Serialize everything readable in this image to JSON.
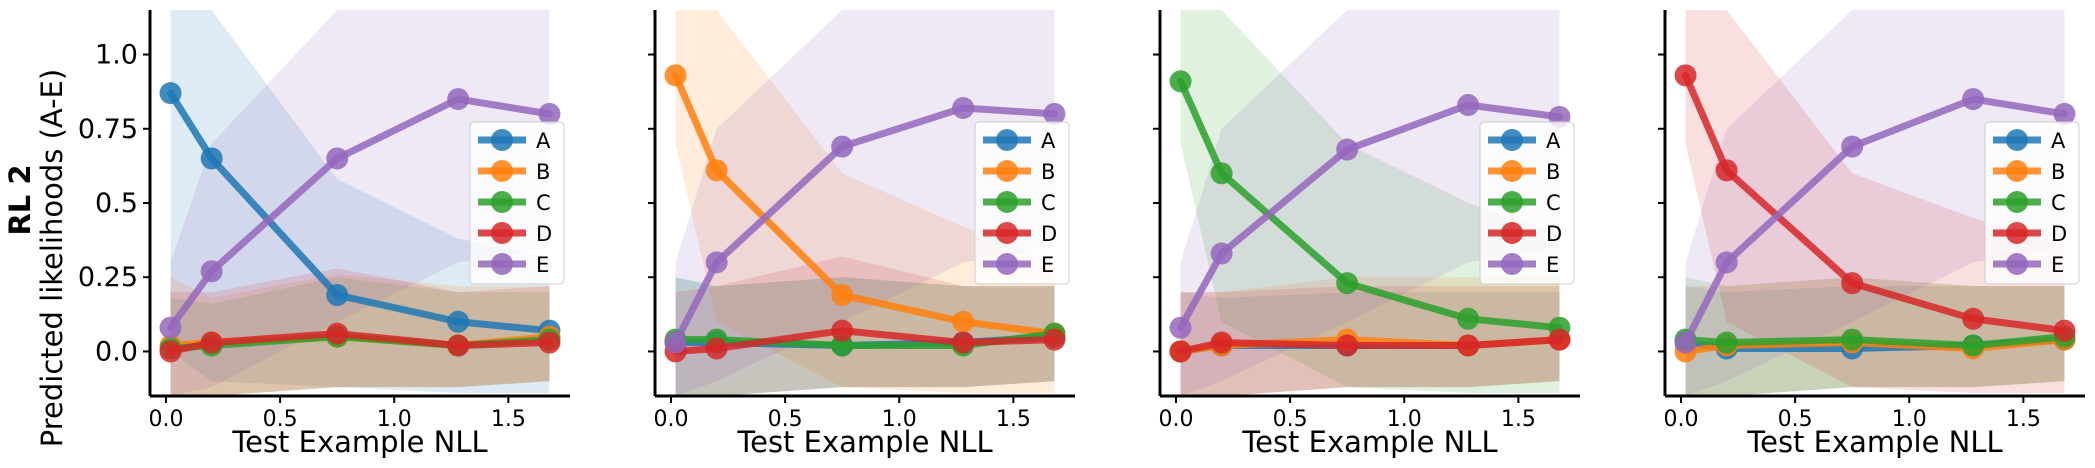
{
  "figure": {
    "row_label": "RL 2",
    "ylabel": "Predicted likelihoods (A-E)",
    "xlabel": "Test Example NLL"
  },
  "colors": {
    "A": "#1f77b4",
    "B": "#ff7f0e",
    "C": "#2ca02c",
    "D": "#d62728",
    "E": "#9467bd"
  },
  "chart_data": [
    {
      "type": "line",
      "xlabel": "Test Example NLL",
      "ylabel": "Predicted likelihoods (A-E)",
      "xlim": [
        -0.07,
        1.77
      ],
      "ylim": [
        -0.15,
        1.15
      ],
      "xticks": [
        "0.0",
        "0.5",
        "1.0",
        "1.5"
      ],
      "yticks": [
        "0.0",
        "0.25",
        "0.5",
        "0.75",
        "1.0"
      ],
      "legend": "center-right",
      "x": [
        0.02,
        0.2,
        0.75,
        1.28,
        1.68
      ],
      "series": [
        {
          "name": "A",
          "values": [
            0.87,
            0.65,
            0.19,
            0.1,
            0.07
          ],
          "band_low": [
            0.0,
            -0.1,
            -0.12,
            -0.14,
            -0.14
          ],
          "band_high": [
            1.15,
            1.15,
            0.58,
            0.38,
            0.32
          ]
        },
        {
          "name": "B",
          "values": [
            0.02,
            0.03,
            0.05,
            0.02,
            0.05
          ],
          "band_low": [
            -0.15,
            -0.15,
            -0.12,
            -0.12,
            -0.1
          ],
          "band_high": [
            0.25,
            0.18,
            0.26,
            0.22,
            0.22
          ]
        },
        {
          "name": "C",
          "values": [
            0.01,
            0.02,
            0.05,
            0.02,
            0.04
          ],
          "band_low": [
            -0.15,
            -0.15,
            -0.12,
            -0.12,
            -0.1
          ],
          "band_high": [
            0.18,
            0.16,
            0.25,
            0.2,
            0.2
          ]
        },
        {
          "name": "D",
          "values": [
            0.0,
            0.03,
            0.06,
            0.02,
            0.03
          ],
          "band_low": [
            -0.15,
            -0.15,
            -0.12,
            -0.12,
            -0.1
          ],
          "band_high": [
            0.2,
            0.2,
            0.28,
            0.2,
            0.22
          ]
        },
        {
          "name": "E",
          "values": [
            0.08,
            0.27,
            0.65,
            0.85,
            0.8
          ],
          "band_low": [
            -0.15,
            -0.12,
            0.1,
            0.3,
            0.35
          ],
          "band_high": [
            0.3,
            0.7,
            1.15,
            1.15,
            1.15
          ]
        }
      ]
    },
    {
      "type": "line",
      "xlabel": "Test Example NLL",
      "xlim": [
        -0.07,
        1.77
      ],
      "ylim": [
        -0.15,
        1.15
      ],
      "xticks": [
        "0.0",
        "0.5",
        "1.0",
        "1.5"
      ],
      "legend": "center-right",
      "x": [
        0.02,
        0.2,
        0.75,
        1.28,
        1.68
      ],
      "series": [
        {
          "name": "A",
          "values": [
            0.03,
            0.03,
            0.02,
            0.03,
            0.05
          ],
          "band_low": [
            -0.15,
            -0.15,
            -0.12,
            -0.12,
            -0.1
          ],
          "band_high": [
            0.25,
            0.22,
            0.25,
            0.22,
            0.22
          ]
        },
        {
          "name": "B",
          "values": [
            0.93,
            0.61,
            0.19,
            0.1,
            0.06
          ],
          "band_low": [
            0.7,
            0.1,
            -0.12,
            -0.14,
            -0.14
          ],
          "band_high": [
            1.15,
            1.15,
            0.6,
            0.42,
            0.3
          ]
        },
        {
          "name": "C",
          "values": [
            0.04,
            0.04,
            0.02,
            0.02,
            0.06
          ],
          "band_low": [
            -0.15,
            -0.15,
            -0.12,
            -0.12,
            -0.1
          ],
          "band_high": [
            0.25,
            0.22,
            0.25,
            0.22,
            0.22
          ]
        },
        {
          "name": "D",
          "values": [
            0.0,
            0.01,
            0.07,
            0.03,
            0.04
          ],
          "band_low": [
            -0.15,
            -0.15,
            -0.12,
            -0.12,
            -0.1
          ],
          "band_high": [
            0.2,
            0.22,
            0.32,
            0.22,
            0.22
          ]
        },
        {
          "name": "E",
          "values": [
            0.03,
            0.3,
            0.69,
            0.82,
            0.8
          ],
          "band_low": [
            -0.15,
            -0.1,
            0.1,
            0.3,
            0.35
          ],
          "band_high": [
            0.3,
            0.75,
            1.15,
            1.15,
            1.15
          ]
        }
      ]
    },
    {
      "type": "line",
      "xlabel": "Test Example NLL",
      "xlim": [
        -0.07,
        1.77
      ],
      "ylim": [
        -0.15,
        1.15
      ],
      "xticks": [
        "0.0",
        "0.5",
        "1.0",
        "1.5"
      ],
      "legend": "center-right",
      "x": [
        0.02,
        0.2,
        0.75,
        1.28,
        1.68
      ],
      "series": [
        {
          "name": "A",
          "values": [
            0.0,
            0.02,
            0.02,
            0.02,
            0.04
          ],
          "band_low": [
            -0.15,
            -0.15,
            -0.12,
            -0.12,
            -0.1
          ],
          "band_high": [
            0.2,
            0.18,
            0.2,
            0.2,
            0.2
          ]
        },
        {
          "name": "B",
          "values": [
            0.0,
            0.02,
            0.04,
            0.02,
            0.04
          ],
          "band_low": [
            -0.15,
            -0.15,
            -0.12,
            -0.12,
            -0.1
          ],
          "band_high": [
            0.2,
            0.2,
            0.25,
            0.25,
            0.25
          ]
        },
        {
          "name": "C",
          "values": [
            0.91,
            0.6,
            0.23,
            0.11,
            0.08
          ],
          "band_low": [
            0.7,
            0.1,
            -0.12,
            -0.14,
            -0.14
          ],
          "band_high": [
            1.15,
            1.15,
            0.7,
            0.5,
            0.4
          ]
        },
        {
          "name": "D",
          "values": [
            0.0,
            0.03,
            0.02,
            0.02,
            0.04
          ],
          "band_low": [
            -0.15,
            -0.15,
            -0.12,
            -0.12,
            -0.1
          ],
          "band_high": [
            0.2,
            0.2,
            0.22,
            0.22,
            0.22
          ]
        },
        {
          "name": "E",
          "values": [
            0.08,
            0.33,
            0.68,
            0.83,
            0.79
          ],
          "band_low": [
            -0.15,
            -0.1,
            0.1,
            0.3,
            0.35
          ],
          "band_high": [
            0.3,
            0.75,
            1.15,
            1.15,
            1.15
          ]
        }
      ]
    },
    {
      "type": "line",
      "xlabel": "Test Example NLL",
      "xlim": [
        -0.07,
        1.77
      ],
      "ylim": [
        -0.15,
        1.15
      ],
      "xticks": [
        "0.0",
        "0.5",
        "1.0",
        "1.5"
      ],
      "legend": "center-right",
      "x": [
        0.02,
        0.2,
        0.75,
        1.28,
        1.68
      ],
      "series": [
        {
          "name": "A",
          "values": [
            0.03,
            0.01,
            0.01,
            0.02,
            0.04
          ],
          "band_low": [
            -0.15,
            -0.15,
            -0.12,
            -0.12,
            -0.1
          ],
          "band_high": [
            0.22,
            0.2,
            0.22,
            0.22,
            0.22
          ]
        },
        {
          "name": "B",
          "values": [
            0.0,
            0.02,
            0.03,
            0.01,
            0.04
          ],
          "band_low": [
            -0.15,
            -0.15,
            -0.12,
            -0.12,
            -0.1
          ],
          "band_high": [
            0.22,
            0.22,
            0.25,
            0.22,
            0.22
          ]
        },
        {
          "name": "C",
          "values": [
            0.04,
            0.03,
            0.04,
            0.02,
            0.05
          ],
          "band_low": [
            -0.15,
            -0.15,
            -0.12,
            -0.12,
            -0.1
          ],
          "band_high": [
            0.25,
            0.22,
            0.25,
            0.22,
            0.22
          ]
        },
        {
          "name": "D",
          "values": [
            0.93,
            0.61,
            0.23,
            0.11,
            0.07
          ],
          "band_low": [
            0.7,
            0.1,
            -0.12,
            -0.14,
            -0.14
          ],
          "band_high": [
            1.15,
            1.15,
            0.6,
            0.45,
            0.35
          ]
        },
        {
          "name": "E",
          "values": [
            0.03,
            0.3,
            0.69,
            0.85,
            0.8
          ],
          "band_low": [
            -0.15,
            -0.1,
            0.1,
            0.3,
            0.35
          ],
          "band_high": [
            0.3,
            0.75,
            1.15,
            1.15,
            1.15
          ]
        }
      ]
    }
  ]
}
